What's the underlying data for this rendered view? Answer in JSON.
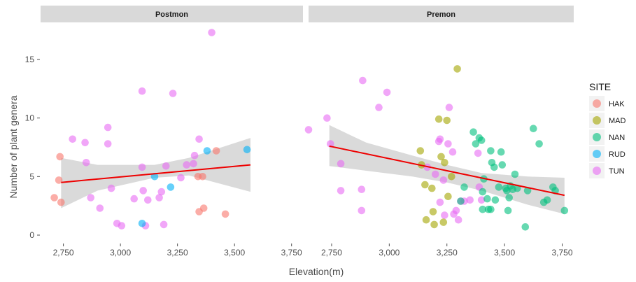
{
  "chart_data": {
    "type": "scatter",
    "xlabel": "Elevation(m)",
    "ylabel": "Number of plant genera",
    "xlim": [
      2650,
      3800
    ],
    "ylim": [
      0,
      17.5
    ],
    "x_ticks": [
      2750,
      3000,
      3250,
      3500,
      3750
    ],
    "x_tick_labels": [
      "2,750",
      "3,000",
      "3,250",
      "3,500",
      "3,750"
    ],
    "y_ticks": [
      0,
      5,
      10,
      15
    ],
    "y_tick_labels": [
      "0",
      "5",
      "10",
      "15"
    ],
    "grid": false,
    "legend": {
      "title": "SITE",
      "placement": "right",
      "entries": [
        {
          "name": "HAK",
          "color": "#F8766D"
        },
        {
          "name": "MAD",
          "color": "#A3A500"
        },
        {
          "name": "NAN",
          "color": "#00BF7D"
        },
        {
          "name": "RUD",
          "color": "#00B0F6"
        },
        {
          "name": "TUN",
          "color": "#E76BF3"
        }
      ]
    },
    "fit_color": "#ee0000",
    "band_color": "#d3d3d3",
    "panels": [
      {
        "strip": "Postmon",
        "fit": {
          "x": [
            2740,
            3570
          ],
          "y": [
            4.5,
            6.0
          ]
        },
        "band": {
          "x": [
            2740,
            2900,
            3150,
            3300,
            3570
          ],
          "upper": [
            6.6,
            6.0,
            6.0,
            6.6,
            8.3
          ],
          "lower": [
            2.3,
            3.8,
            4.9,
            5.1,
            3.7
          ]
        },
        "points": [
          {
            "site": "HAK",
            "x": 2710,
            "y": 3.2
          },
          {
            "site": "HAK",
            "x": 2735,
            "y": 6.7
          },
          {
            "site": "HAK",
            "x": 2730,
            "y": 4.7
          },
          {
            "site": "HAK",
            "x": 2740,
            "y": 2.8
          },
          {
            "site": "HAK",
            "x": 3340,
            "y": 5.0
          },
          {
            "site": "HAK",
            "x": 3360,
            "y": 5.0
          },
          {
            "site": "HAK",
            "x": 3345,
            "y": 2.0
          },
          {
            "site": "HAK",
            "x": 3365,
            "y": 2.3
          },
          {
            "site": "HAK",
            "x": 3420,
            "y": 7.2
          },
          {
            "site": "HAK",
            "x": 3460,
            "y": 1.8
          },
          {
            "site": "TUN",
            "x": 2790,
            "y": 8.2
          },
          {
            "site": "TUN",
            "x": 2845,
            "y": 7.9
          },
          {
            "site": "TUN",
            "x": 2850,
            "y": 6.2
          },
          {
            "site": "TUN",
            "x": 2870,
            "y": 3.2
          },
          {
            "site": "TUN",
            "x": 2910,
            "y": 2.3
          },
          {
            "site": "TUN",
            "x": 2945,
            "y": 9.2
          },
          {
            "site": "TUN",
            "x": 2945,
            "y": 7.8
          },
          {
            "site": "TUN",
            "x": 2960,
            "y": 4.0
          },
          {
            "site": "TUN",
            "x": 2985,
            "y": 1.0
          },
          {
            "site": "TUN",
            "x": 3005,
            "y": 0.8
          },
          {
            "site": "TUN",
            "x": 3060,
            "y": 3.1
          },
          {
            "site": "TUN",
            "x": 3095,
            "y": 12.3
          },
          {
            "site": "TUN",
            "x": 3095,
            "y": 5.8
          },
          {
            "site": "TUN",
            "x": 3100,
            "y": 3.8
          },
          {
            "site": "TUN",
            "x": 3110,
            "y": 0.8
          },
          {
            "site": "TUN",
            "x": 3120,
            "y": 3.0
          },
          {
            "site": "TUN",
            "x": 3170,
            "y": 3.2
          },
          {
            "site": "TUN",
            "x": 3180,
            "y": 3.7
          },
          {
            "site": "TUN",
            "x": 3190,
            "y": 0.9
          },
          {
            "site": "TUN",
            "x": 3200,
            "y": 5.9
          },
          {
            "site": "TUN",
            "x": 3230,
            "y": 12.1
          },
          {
            "site": "TUN",
            "x": 3265,
            "y": 4.9
          },
          {
            "site": "TUN",
            "x": 3290,
            "y": 6.0
          },
          {
            "site": "TUN",
            "x": 3320,
            "y": 6.1
          },
          {
            "site": "TUN",
            "x": 3325,
            "y": 6.8
          },
          {
            "site": "TUN",
            "x": 3345,
            "y": 8.2
          },
          {
            "site": "TUN",
            "x": 3400,
            "y": 17.3
          },
          {
            "site": "RUD",
            "x": 3095,
            "y": 1.0
          },
          {
            "site": "RUD",
            "x": 3150,
            "y": 5.0
          },
          {
            "site": "RUD",
            "x": 3220,
            "y": 4.1
          },
          {
            "site": "RUD",
            "x": 3380,
            "y": 7.2
          },
          {
            "site": "RUD",
            "x": 3555,
            "y": 7.3
          }
        ]
      },
      {
        "strip": "Premon",
        "fit": {
          "x": [
            2740,
            3760
          ],
          "y": [
            7.6,
            3.4
          ]
        },
        "band": {
          "x": [
            2740,
            2900,
            3100,
            3250,
            3400,
            3600,
            3760
          ],
          "upper": [
            9.4,
            7.9,
            6.8,
            6.0,
            5.3,
            5.0,
            4.9
          ],
          "lower": [
            5.9,
            5.5,
            5.0,
            4.5,
            3.8,
            2.6,
            1.8
          ]
        },
        "points": [
          {
            "site": "TUN",
            "x": 2650,
            "y": 9.0
          },
          {
            "site": "TUN",
            "x": 2730,
            "y": 10.0
          },
          {
            "site": "TUN",
            "x": 2745,
            "y": 7.8
          },
          {
            "site": "TUN",
            "x": 2790,
            "y": 6.1
          },
          {
            "site": "TUN",
            "x": 2790,
            "y": 3.8
          },
          {
            "site": "TUN",
            "x": 2880,
            "y": 3.9
          },
          {
            "site": "TUN",
            "x": 2880,
            "y": 2.1
          },
          {
            "site": "TUN",
            "x": 2885,
            "y": 13.2
          },
          {
            "site": "TUN",
            "x": 2955,
            "y": 10.9
          },
          {
            "site": "TUN",
            "x": 2990,
            "y": 12.2
          },
          {
            "site": "TUN",
            "x": 3165,
            "y": 5.8
          },
          {
            "site": "TUN",
            "x": 3200,
            "y": 5.2
          },
          {
            "site": "TUN",
            "x": 3215,
            "y": 8.0
          },
          {
            "site": "TUN",
            "x": 3220,
            "y": 8.2
          },
          {
            "site": "TUN",
            "x": 3220,
            "y": 2.8
          },
          {
            "site": "TUN",
            "x": 3235,
            "y": 4.7
          },
          {
            "site": "TUN",
            "x": 3240,
            "y": 1.7
          },
          {
            "site": "TUN",
            "x": 3255,
            "y": 7.8
          },
          {
            "site": "TUN",
            "x": 3260,
            "y": 10.9
          },
          {
            "site": "TUN",
            "x": 3275,
            "y": 7.1
          },
          {
            "site": "TUN",
            "x": 3280,
            "y": 1.8
          },
          {
            "site": "TUN",
            "x": 3290,
            "y": 2.1
          },
          {
            "site": "TUN",
            "x": 3300,
            "y": 1.3
          },
          {
            "site": "TUN",
            "x": 3310,
            "y": 2.9
          },
          {
            "site": "TUN",
            "x": 3325,
            "y": 2.9
          },
          {
            "site": "TUN",
            "x": 3350,
            "y": 3.0
          },
          {
            "site": "TUN",
            "x": 3385,
            "y": 7.0
          },
          {
            "site": "TUN",
            "x": 3390,
            "y": 4.1
          },
          {
            "site": "TUN",
            "x": 3400,
            "y": 3.0
          },
          {
            "site": "MAD",
            "x": 3135,
            "y": 7.2
          },
          {
            "site": "MAD",
            "x": 3140,
            "y": 6.0
          },
          {
            "site": "MAD",
            "x": 3155,
            "y": 4.3
          },
          {
            "site": "MAD",
            "x": 3160,
            "y": 1.3
          },
          {
            "site": "MAD",
            "x": 3185,
            "y": 4.0
          },
          {
            "site": "MAD",
            "x": 3190,
            "y": 2.0
          },
          {
            "site": "MAD",
            "x": 3195,
            "y": 0.9
          },
          {
            "site": "MAD",
            "x": 3215,
            "y": 9.9
          },
          {
            "site": "MAD",
            "x": 3225,
            "y": 6.7
          },
          {
            "site": "MAD",
            "x": 3235,
            "y": 1.1
          },
          {
            "site": "MAD",
            "x": 3240,
            "y": 6.2
          },
          {
            "site": "MAD",
            "x": 3250,
            "y": 9.8
          },
          {
            "site": "MAD",
            "x": 3255,
            "y": 3.3
          },
          {
            "site": "MAD",
            "x": 3270,
            "y": 5.0
          },
          {
            "site": "MAD",
            "x": 3295,
            "y": 14.2
          },
          {
            "site": "NAN",
            "x": 3310,
            "y": 2.9
          },
          {
            "site": "NAN",
            "x": 3325,
            "y": 4.1
          },
          {
            "site": "NAN",
            "x": 3365,
            "y": 8.8
          },
          {
            "site": "NAN",
            "x": 3375,
            "y": 7.8
          },
          {
            "site": "NAN",
            "x": 3390,
            "y": 8.3
          },
          {
            "site": "NAN",
            "x": 3400,
            "y": 8.1
          },
          {
            "site": "NAN",
            "x": 3405,
            "y": 3.7
          },
          {
            "site": "NAN",
            "x": 3405,
            "y": 2.2
          },
          {
            "site": "NAN",
            "x": 3410,
            "y": 4.8
          },
          {
            "site": "NAN",
            "x": 3425,
            "y": 3.1
          },
          {
            "site": "NAN",
            "x": 3430,
            "y": 2.2
          },
          {
            "site": "NAN",
            "x": 3440,
            "y": 7.2
          },
          {
            "site": "NAN",
            "x": 3440,
            "y": 2.2
          },
          {
            "site": "NAN",
            "x": 3445,
            "y": 6.2
          },
          {
            "site": "NAN",
            "x": 3455,
            "y": 5.8
          },
          {
            "site": "NAN",
            "x": 3460,
            "y": 3.0
          },
          {
            "site": "NAN",
            "x": 3475,
            "y": 4.1
          },
          {
            "site": "NAN",
            "x": 3485,
            "y": 7.1
          },
          {
            "site": "NAN",
            "x": 3490,
            "y": 6.0
          },
          {
            "site": "NAN",
            "x": 3505,
            "y": 4.0
          },
          {
            "site": "NAN",
            "x": 3510,
            "y": 3.8
          },
          {
            "site": "NAN",
            "x": 3515,
            "y": 2.1
          },
          {
            "site": "NAN",
            "x": 3520,
            "y": 3.2
          },
          {
            "site": "NAN",
            "x": 3525,
            "y": 4.2
          },
          {
            "site": "NAN",
            "x": 3535,
            "y": 3.9
          },
          {
            "site": "NAN",
            "x": 3545,
            "y": 5.2
          },
          {
            "site": "NAN",
            "x": 3555,
            "y": 4.0
          },
          {
            "site": "NAN",
            "x": 3590,
            "y": 0.7
          },
          {
            "site": "NAN",
            "x": 3600,
            "y": 3.8
          },
          {
            "site": "NAN",
            "x": 3625,
            "y": 9.1
          },
          {
            "site": "NAN",
            "x": 3650,
            "y": 7.8
          },
          {
            "site": "NAN",
            "x": 3670,
            "y": 2.8
          },
          {
            "site": "NAN",
            "x": 3685,
            "y": 3.0
          },
          {
            "site": "NAN",
            "x": 3710,
            "y": 4.1
          },
          {
            "site": "NAN",
            "x": 3720,
            "y": 3.8
          },
          {
            "site": "NAN",
            "x": 3760,
            "y": 2.1
          }
        ]
      }
    ]
  }
}
